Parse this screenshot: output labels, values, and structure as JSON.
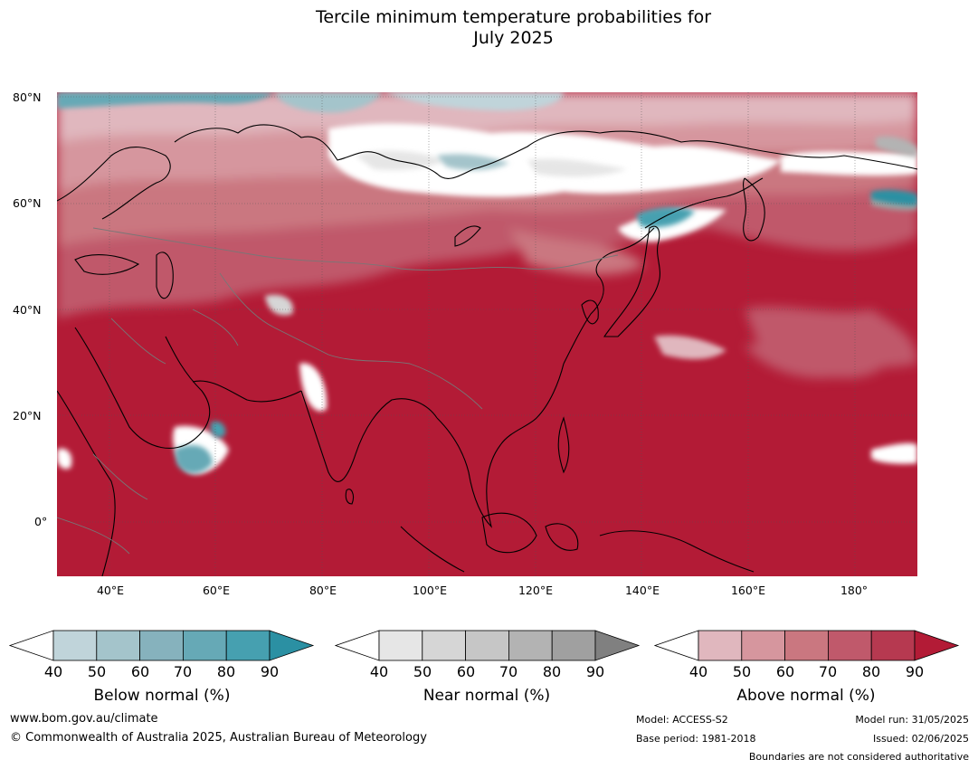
{
  "title": {
    "line1": "Tercile minimum temperature probabilities for",
    "line2": "July 2025"
  },
  "map": {
    "lat_labels": [
      "80°N",
      "60°N",
      "40°N",
      "20°N",
      "0°"
    ],
    "lon_labels": [
      "40°E",
      "60°E",
      "80°E",
      "100°E",
      "120°E",
      "140°E",
      "160°E",
      "180°"
    ]
  },
  "legends": [
    {
      "title": "Below normal (%)",
      "ticks": [
        "40",
        "50",
        "60",
        "70",
        "80",
        "90"
      ],
      "colors": [
        "#ffffff",
        "#c0d4da",
        "#a4c4cb",
        "#86b2bd",
        "#66a9b6",
        "#46a0b0",
        "#2b90a3"
      ]
    },
    {
      "title": "Near normal (%)",
      "ticks": [
        "40",
        "50",
        "60",
        "70",
        "80",
        "90"
      ],
      "colors": [
        "#ffffff",
        "#e6e6e6",
        "#d6d6d6",
        "#c6c6c6",
        "#b3b3b3",
        "#a0a0a0",
        "#808080"
      ]
    },
    {
      "title": "Above normal (%)",
      "ticks": [
        "40",
        "50",
        "60",
        "70",
        "80",
        "90"
      ],
      "colors": [
        "#ffffff",
        "#e0b7be",
        "#d6969e",
        "#ca7780",
        "#c0596b",
        "#b63950",
        "#b31b36"
      ]
    }
  ],
  "footer": {
    "website": "www.bom.gov.au/climate",
    "copyright": "© Commonwealth of Australia 2025, Australian Bureau of Meteorology",
    "model": "Model: ACCESS-S2",
    "base_period": "Base period: 1981-2018",
    "model_run": "Model run: 31/05/2025",
    "issued": "Issued: 02/06/2025",
    "disclaimer": "Boundaries are not considered authoritative"
  }
}
